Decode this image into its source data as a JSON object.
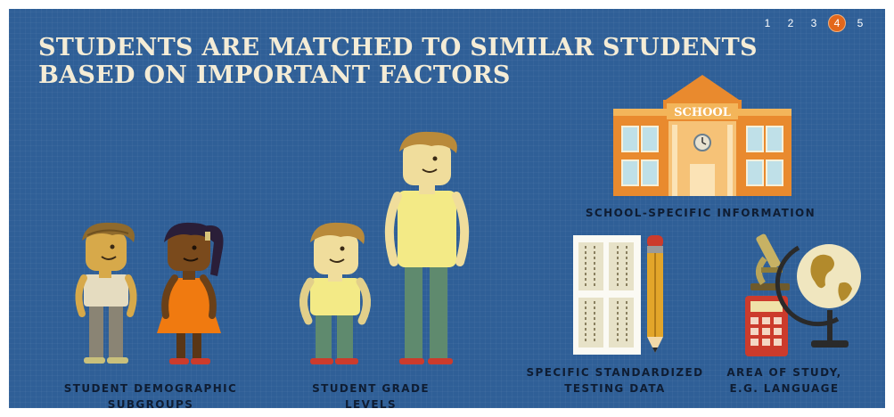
{
  "header": {
    "title_line1": "STUDENTS ARE MATCHED TO SIMILAR STUDENTS",
    "title_line2": "BASED ON IMPORTANT FACTORS"
  },
  "pagination": {
    "pages": [
      "1",
      "2",
      "3",
      "4",
      "5"
    ],
    "current": "4",
    "accent_color": "#e3671b"
  },
  "captions": {
    "demographic": "STUDENT DEMOGRAPHIC SUBGROUPS",
    "grade_levels": "STUDENT GRADE LEVELS",
    "school_info": "SCHOOL-SPECIFIC INFORMATION",
    "testing_line1": "SPECIFIC STANDARDIZED",
    "testing_line2": "TESTING DATA",
    "study_line1": "AREA OF STUDY,",
    "study_line2": "E.G. LANGUAGE"
  },
  "school_sign": "SCHOOL",
  "icons": [
    "student-boy-icon",
    "student-girl-icon",
    "small-student-icon",
    "tall-student-icon",
    "school-building-icon",
    "test-sheet-icon",
    "pencil-icon",
    "microscope-icon",
    "calculator-icon",
    "globe-icon"
  ],
  "colors": {
    "background": "#2f5f97",
    "title": "#f4ecd6",
    "caption": "#0f1d33",
    "school_orange": "#e98a2e"
  }
}
